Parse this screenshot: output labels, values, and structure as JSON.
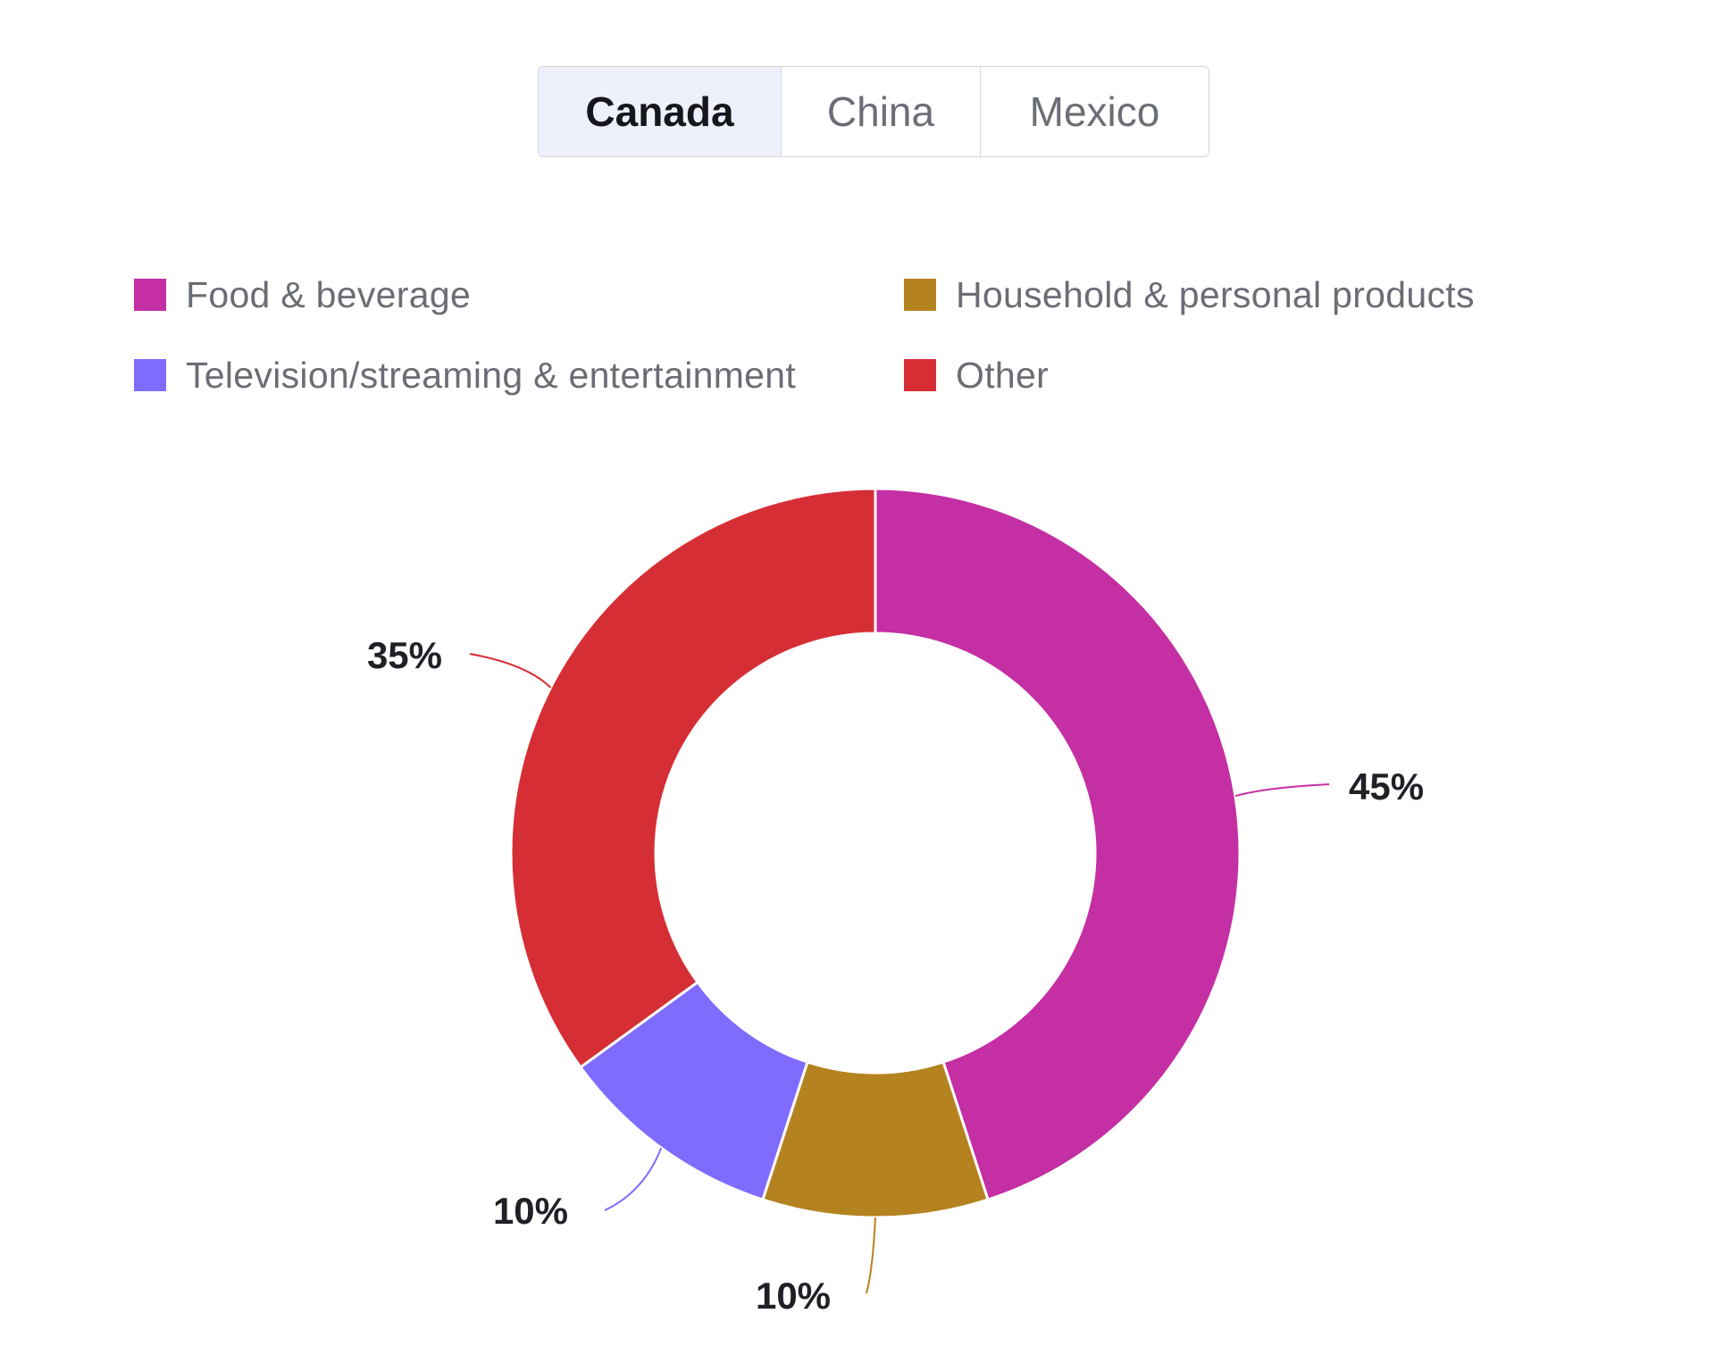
{
  "tabs": [
    {
      "label": "Canada",
      "active": true
    },
    {
      "label": "China",
      "active": false
    },
    {
      "label": "Mexico",
      "active": false
    }
  ],
  "chart_data": {
    "type": "pie",
    "style": "donut",
    "categories": [
      "Food & beverage",
      "Household & personal products",
      "Television/streaming & entertainment",
      "Other"
    ],
    "values": [
      45,
      10,
      10,
      35
    ],
    "value_labels": [
      "45%",
      "10%",
      "10%",
      "35%"
    ],
    "colors": [
      "#c42fa3",
      "#b4831f",
      "#806bff",
      "#d52f35"
    ],
    "legend_position": "top",
    "start_angle": "12 o'clock, clockwise"
  }
}
